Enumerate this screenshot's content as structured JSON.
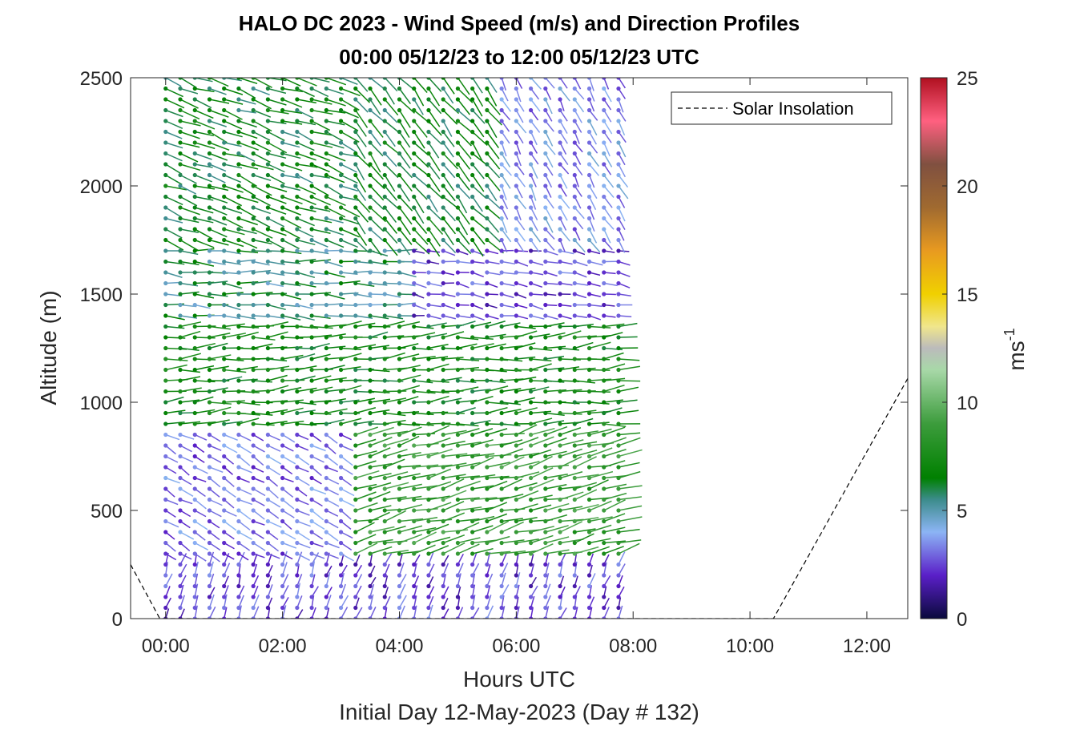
{
  "chart_data": {
    "type": "wind-barb-profile",
    "title": "HALO DC 2023 - Wind Speed (m/s) and Direction Profiles",
    "subtitle": "00:00 05/12/23 to 12:00 05/12/23  UTC",
    "xlabel": "Hours UTC",
    "x_sublabel": "Initial Day 12-May-2023 (Day # 132)",
    "ylabel": "Altitude (m)",
    "xlim_hours": [
      -0.6,
      12.7
    ],
    "ylim": [
      0,
      2500
    ],
    "x_ticks": [
      {
        "hour": 0,
        "label": "00:00"
      },
      {
        "hour": 2,
        "label": "02:00"
      },
      {
        "hour": 4,
        "label": "04:00"
      },
      {
        "hour": 6,
        "label": "06:00"
      },
      {
        "hour": 8,
        "label": "08:00"
      },
      {
        "hour": 10,
        "label": "10:00"
      },
      {
        "hour": 12,
        "label": "12:00"
      }
    ],
    "y_ticks": [
      0,
      500,
      1000,
      1500,
      2000,
      2500
    ],
    "data_time_range_hours": [
      0,
      7.75
    ],
    "profile_interval_hours": 0.25,
    "altitude_spacing_m": 50,
    "colorbar": {
      "label": "ms",
      "label_exponent": "-1",
      "range": [
        0,
        25
      ],
      "ticks": [
        0,
        5,
        10,
        15,
        20,
        25
      ],
      "stops": [
        {
          "v": 0,
          "c": "#0a0a3c"
        },
        {
          "v": 2,
          "c": "#5a1fc8"
        },
        {
          "v": 4,
          "c": "#8cb4f5"
        },
        {
          "v": 5.5,
          "c": "#3c8c8c"
        },
        {
          "v": 6.5,
          "c": "#008000"
        },
        {
          "v": 9,
          "c": "#3c9c3c"
        },
        {
          "v": 11.5,
          "c": "#a8d8a8"
        },
        {
          "v": 12.5,
          "c": "#bbbbbb"
        },
        {
          "v": 13.5,
          "c": "#f0e68c"
        },
        {
          "v": 15,
          "c": "#f0d000"
        },
        {
          "v": 17,
          "c": "#e89a20"
        },
        {
          "v": 19,
          "c": "#a06a30"
        },
        {
          "v": 21,
          "c": "#805040"
        },
        {
          "v": 23,
          "c": "#ff6080"
        },
        {
          "v": 25,
          "c": "#b01020"
        }
      ]
    },
    "regimes": [
      {
        "t0": 0,
        "t1": 7.75,
        "z0": 0,
        "z1": 250,
        "speed": 2.5,
        "dir_deg": 200
      },
      {
        "t0": 0,
        "t1": 3.0,
        "z0": 250,
        "z1": 850,
        "speed": 3.0,
        "dir_deg": 300
      },
      {
        "t0": 3.0,
        "t1": 7.75,
        "z0": 250,
        "z1": 850,
        "speed": 8.5,
        "dir_deg": 255
      },
      {
        "t0": 0,
        "t1": 7.75,
        "z0": 850,
        "z1": 1350,
        "speed": 7.0,
        "dir_deg": 265
      },
      {
        "t0": 0,
        "t1": 4.0,
        "z0": 1350,
        "z1": 1700,
        "speed": 5.5,
        "dir_deg": 275
      },
      {
        "t0": 4.0,
        "t1": 7.75,
        "z0": 1350,
        "z1": 1700,
        "speed": 2.5,
        "dir_deg": 280
      },
      {
        "t0": 0,
        "t1": 3.0,
        "z0": 1700,
        "z1": 2500,
        "speed": 6.5,
        "dir_deg": 290
      },
      {
        "t0": 3.0,
        "t1": 5.5,
        "z0": 1700,
        "z1": 2500,
        "speed": 6.5,
        "dir_deg": 320
      },
      {
        "t0": 5.5,
        "t1": 7.75,
        "z0": 1700,
        "z1": 2500,
        "speed": 3.5,
        "dir_deg": 330
      }
    ],
    "series": [
      {
        "name": "Solar Insolation",
        "style": "dashed",
        "color": "#000000",
        "points_hours_alt": [
          [
            -0.6,
            250
          ],
          [
            -0.1,
            0
          ],
          [
            10.4,
            0
          ],
          [
            12.7,
            1110
          ]
        ]
      }
    ],
    "legend_position": "top-right"
  }
}
